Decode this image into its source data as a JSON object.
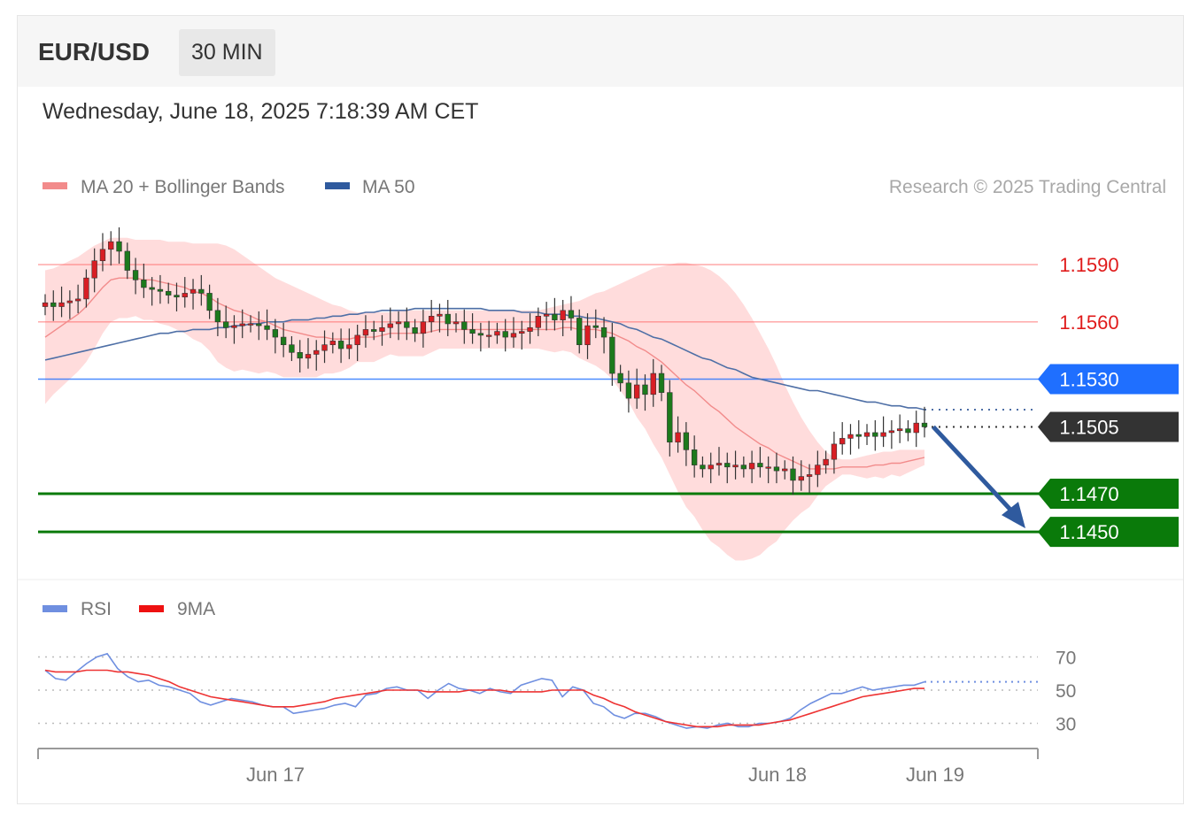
{
  "header": {
    "instrument": "EUR/USD",
    "timeframe": "30 MIN",
    "datetime": "Wednesday, June 18, 2025 7:18:39 AM CET"
  },
  "legend": {
    "ma20_bb": "MA 20 + Bollinger Bands",
    "ma50": "MA 50",
    "copyright": "Research © 2025 Trading Central"
  },
  "rsi_legend": {
    "rsi": "RSI",
    "ma9": "9MA"
  },
  "colors": {
    "up": "#d81e24",
    "down": "#1c7a1c",
    "ma20": "#f28b8b",
    "bb_fill": "#ffd6d6",
    "ma50": "#4e6fa6",
    "pivot": "#1f6fff",
    "support": "#0a7a0a",
    "resistance": "#ff6060",
    "arrow": "#2f5a9e",
    "rsi": "#6f8fe0",
    "rsi_ma": "#ee3333"
  },
  "chart_data": [
    {
      "type": "candlestick",
      "title": "EUR/USD",
      "x_ticks": [
        "Jun 17",
        "Jun 18",
        "Jun 19"
      ],
      "ylim": [
        1.1432,
        1.1622
      ],
      "levels": [
        {
          "label": "1.1590",
          "value": 1.159,
          "kind": "resistance"
        },
        {
          "label": "1.1560",
          "value": 1.156,
          "kind": "resistance"
        },
        {
          "label": "1.1530",
          "value": 1.153,
          "kind": "pivot"
        },
        {
          "label": "1.1505",
          "value": 1.1505,
          "kind": "last"
        },
        {
          "label": "1.1470",
          "value": 1.147,
          "kind": "support"
        },
        {
          "label": "1.1450",
          "value": 1.145,
          "kind": "support"
        }
      ],
      "close": [
        1.157,
        1.1568,
        1.157,
        1.1571,
        1.1572,
        1.1583,
        1.1592,
        1.1598,
        1.1602,
        1.1597,
        1.1587,
        1.1582,
        1.1578,
        1.1577,
        1.1576,
        1.1574,
        1.1573,
        1.1575,
        1.1577,
        1.1575,
        1.1566,
        1.156,
        1.1557,
        1.1558,
        1.1559,
        1.1559,
        1.1558,
        1.1556,
        1.1552,
        1.1548,
        1.1544,
        1.1541,
        1.1543,
        1.1545,
        1.1548,
        1.155,
        1.1546,
        1.1548,
        1.1553,
        1.1556,
        1.1555,
        1.1557,
        1.1559,
        1.156,
        1.1557,
        1.1554,
        1.156,
        1.1563,
        1.1564,
        1.1559,
        1.156,
        1.1556,
        1.1554,
        1.1553,
        1.1553,
        1.1555,
        1.1552,
        1.1554,
        1.1555,
        1.1557,
        1.1563,
        1.1564,
        1.1561,
        1.1566,
        1.1562,
        1.1548,
        1.1558,
        1.1557,
        1.1552,
        1.1533,
        1.1528,
        1.152,
        1.1527,
        1.1522,
        1.1533,
        1.1523,
        1.1497,
        1.1502,
        1.1493,
        1.1485,
        1.1483,
        1.1485,
        1.1486,
        1.1484,
        1.1485,
        1.1483,
        1.1486,
        1.1484,
        1.1484,
        1.1482,
        1.1483,
        1.1477,
        1.1479,
        1.148,
        1.1485,
        1.1488,
        1.1496,
        1.1499,
        1.1501,
        1.15,
        1.1502,
        1.15,
        1.1502,
        1.1503,
        1.1504,
        1.1502,
        1.1507,
        1.1505
      ],
      "ma20": [
        1.1552,
        1.1555,
        1.1558,
        1.1561,
        1.1564,
        1.1568,
        1.1573,
        1.1578,
        1.1582,
        1.1583,
        1.1583,
        1.1583,
        1.1582,
        1.1582,
        1.1581,
        1.158,
        1.1579,
        1.1578,
        1.1576,
        1.1575,
        1.1573,
        1.157,
        1.1568,
        1.1566,
        1.1565,
        1.1563,
        1.1561,
        1.156,
        1.1558,
        1.1556,
        1.1555,
        1.1554,
        1.1553,
        1.1552,
        1.1552,
        1.1551,
        1.1551,
        1.1551,
        1.1552,
        1.1552,
        1.1552,
        1.1553,
        1.1554,
        1.1554,
        1.1554,
        1.1554,
        1.1554,
        1.1555,
        1.1556,
        1.1556,
        1.1556,
        1.1556,
        1.1556,
        1.1556,
        1.1556,
        1.1556,
        1.1556,
        1.1556,
        1.1556,
        1.1556,
        1.1556,
        1.1556,
        1.1556,
        1.1557,
        1.1557,
        1.1556,
        1.1556,
        1.1556,
        1.1555,
        1.1554,
        1.1552,
        1.155,
        1.1547,
        1.1545,
        1.1542,
        1.1539,
        1.1535,
        1.1531,
        1.1527,
        1.1524,
        1.152,
        1.1516,
        1.1513,
        1.1509,
        1.1505,
        1.1502,
        1.1499,
        1.1496,
        1.1494,
        1.1491,
        1.1489,
        1.1487,
        1.1485,
        1.1483,
        1.1483,
        1.1483,
        1.1483,
        1.1484,
        1.1484,
        1.1484,
        1.1484,
        1.1485,
        1.1485,
        1.1486,
        1.1486,
        1.1487,
        1.1488,
        1.1489
      ],
      "bb_upper": [
        1.1587,
        1.1588,
        1.159,
        1.1592,
        1.1594,
        1.1597,
        1.16,
        1.1602,
        1.1604,
        1.1604,
        1.1604,
        1.1603,
        1.1603,
        1.1603,
        1.1603,
        1.1602,
        1.1602,
        1.1602,
        1.1601,
        1.1601,
        1.1601,
        1.1601,
        1.16,
        1.1598,
        1.1595,
        1.1592,
        1.1589,
        1.1586,
        1.1583,
        1.1581,
        1.1579,
        1.1577,
        1.1575,
        1.1573,
        1.1571,
        1.1569,
        1.1568,
        1.1566,
        1.1565,
        1.1565,
        1.1565,
        1.1565,
        1.1565,
        1.1566,
        1.1566,
        1.1566,
        1.1566,
        1.1566,
        1.1566,
        1.1566,
        1.1566,
        1.1566,
        1.1566,
        1.1566,
        1.1566,
        1.1566,
        1.1566,
        1.1566,
        1.1566,
        1.1566,
        1.1566,
        1.1567,
        1.1568,
        1.1569,
        1.157,
        1.1571,
        1.1573,
        1.1575,
        1.1576,
        1.1578,
        1.158,
        1.1582,
        1.1584,
        1.1586,
        1.1588,
        1.1589,
        1.159,
        1.1591,
        1.1591,
        1.159,
        1.1589,
        1.1587,
        1.1584,
        1.158,
        1.1575,
        1.1569,
        1.1562,
        1.1554,
        1.1546,
        1.1537,
        1.1527,
        1.1518,
        1.151,
        1.1503,
        1.1497,
        1.1492,
        1.1489,
        1.1488,
        1.1488,
        1.1489,
        1.149,
        1.1491,
        1.1492,
        1.1492,
        1.1493,
        1.1493,
        1.1493,
        1.1493
      ],
      "bb_lower": [
        1.1517,
        1.1522,
        1.1526,
        1.153,
        1.1534,
        1.1539,
        1.1546,
        1.1554,
        1.156,
        1.1562,
        1.1562,
        1.1563,
        1.1561,
        1.1561,
        1.1559,
        1.1558,
        1.1556,
        1.1554,
        1.1551,
        1.1549,
        1.1545,
        1.1539,
        1.1536,
        1.1534,
        1.1535,
        1.1534,
        1.1533,
        1.1534,
        1.1533,
        1.1531,
        1.1531,
        1.1531,
        1.1531,
        1.1531,
        1.1533,
        1.1533,
        1.1534,
        1.1536,
        1.1539,
        1.1539,
        1.1539,
        1.1541,
        1.1543,
        1.1542,
        1.1542,
        1.1542,
        1.1542,
        1.1544,
        1.1546,
        1.1546,
        1.1546,
        1.1546,
        1.1546,
        1.1546,
        1.1546,
        1.1546,
        1.1546,
        1.1546,
        1.1546,
        1.1546,
        1.1546,
        1.1545,
        1.1544,
        1.1545,
        1.1544,
        1.1541,
        1.1539,
        1.1537,
        1.1534,
        1.153,
        1.1524,
        1.1518,
        1.151,
        1.1504,
        1.1496,
        1.1489,
        1.148,
        1.1471,
        1.1463,
        1.1458,
        1.1451,
        1.1445,
        1.1442,
        1.1438,
        1.1435,
        1.1435,
        1.1436,
        1.1438,
        1.1442,
        1.1445,
        1.1451,
        1.1456,
        1.146,
        1.1463,
        1.1469,
        1.1474,
        1.1477,
        1.148,
        1.148,
        1.1479,
        1.1478,
        1.1479,
        1.1478,
        1.148,
        1.1479,
        1.1481,
        1.1483,
        1.1485
      ],
      "ma50": [
        1.154,
        1.1541,
        1.1542,
        1.1543,
        1.1544,
        1.1545,
        1.1546,
        1.1547,
        1.1548,
        1.1549,
        1.155,
        1.1551,
        1.1552,
        1.1553,
        1.1554,
        1.1554,
        1.1555,
        1.1555,
        1.1556,
        1.1556,
        1.1556,
        1.1557,
        1.1557,
        1.1558,
        1.1558,
        1.1559,
        1.1559,
        1.156,
        1.156,
        1.156,
        1.1561,
        1.1561,
        1.1561,
        1.1562,
        1.1562,
        1.1563,
        1.1563,
        1.1564,
        1.1564,
        1.1565,
        1.1565,
        1.1566,
        1.1566,
        1.1566,
        1.1566,
        1.1567,
        1.1567,
        1.1567,
        1.1567,
        1.1567,
        1.1567,
        1.1567,
        1.1567,
        1.1567,
        1.1566,
        1.1566,
        1.1566,
        1.1566,
        1.1565,
        1.1565,
        1.1565,
        1.1564,
        1.1564,
        1.1564,
        1.1563,
        1.1563,
        1.1562,
        1.1562,
        1.1561,
        1.156,
        1.1559,
        1.1557,
        1.1556,
        1.1554,
        1.1552,
        1.1551,
        1.1549,
        1.1547,
        1.1545,
        1.1543,
        1.1541,
        1.154,
        1.1538,
        1.1536,
        1.1535,
        1.1533,
        1.1531,
        1.153,
        1.1529,
        1.1528,
        1.1527,
        1.1526,
        1.1525,
        1.1524,
        1.1524,
        1.1523,
        1.1522,
        1.1521,
        1.152,
        1.1519,
        1.1518,
        1.1518,
        1.1517,
        1.1516,
        1.1516,
        1.1515,
        1.1515,
        1.1514
      ],
      "target": 1.145
    },
    {
      "type": "line",
      "title": "RSI",
      "y_ticks": [
        70,
        50,
        30
      ],
      "ylim": [
        10,
        90
      ],
      "series": [
        {
          "name": "RSI",
          "values": [
            62,
            57,
            56,
            61,
            66,
            70,
            72,
            63,
            58,
            55,
            56,
            53,
            52,
            50,
            48,
            43,
            41,
            43,
            45,
            44,
            43,
            41,
            40,
            40,
            36,
            37,
            38,
            39,
            41,
            42,
            40,
            47,
            48,
            51,
            52,
            50,
            50,
            45,
            50,
            54,
            51,
            50,
            48,
            51,
            49,
            48,
            53,
            55,
            57,
            56,
            46,
            52,
            50,
            42,
            40,
            35,
            33,
            36,
            36,
            34,
            31,
            29,
            27,
            28,
            27,
            29,
            30,
            28,
            28,
            30,
            30,
            31,
            33,
            38,
            42,
            45,
            48,
            48,
            50,
            52,
            50,
            51,
            52,
            53,
            53,
            55
          ],
          "x_start_frac": 0.0,
          "x_end_frac": 1.0
        },
        {
          "name": "9MA",
          "values": [
            62,
            61,
            61,
            61,
            62,
            62,
            62,
            61,
            61,
            60,
            59,
            57,
            55,
            52,
            50,
            48,
            46,
            45,
            44,
            43,
            42,
            41,
            40,
            40,
            40,
            41,
            42,
            43,
            45,
            46,
            47,
            48,
            49,
            50,
            50,
            50,
            50,
            49,
            49,
            49,
            49,
            50,
            50,
            50,
            50,
            49,
            49,
            49,
            49,
            50,
            50,
            50,
            50,
            47,
            45,
            42,
            40,
            37,
            35,
            33,
            31,
            30,
            29,
            28,
            28,
            28,
            29,
            29,
            29,
            29,
            30,
            31,
            32,
            34,
            36,
            38,
            40,
            42,
            44,
            46,
            47,
            48,
            49,
            50,
            51,
            51
          ]
        }
      ]
    }
  ]
}
